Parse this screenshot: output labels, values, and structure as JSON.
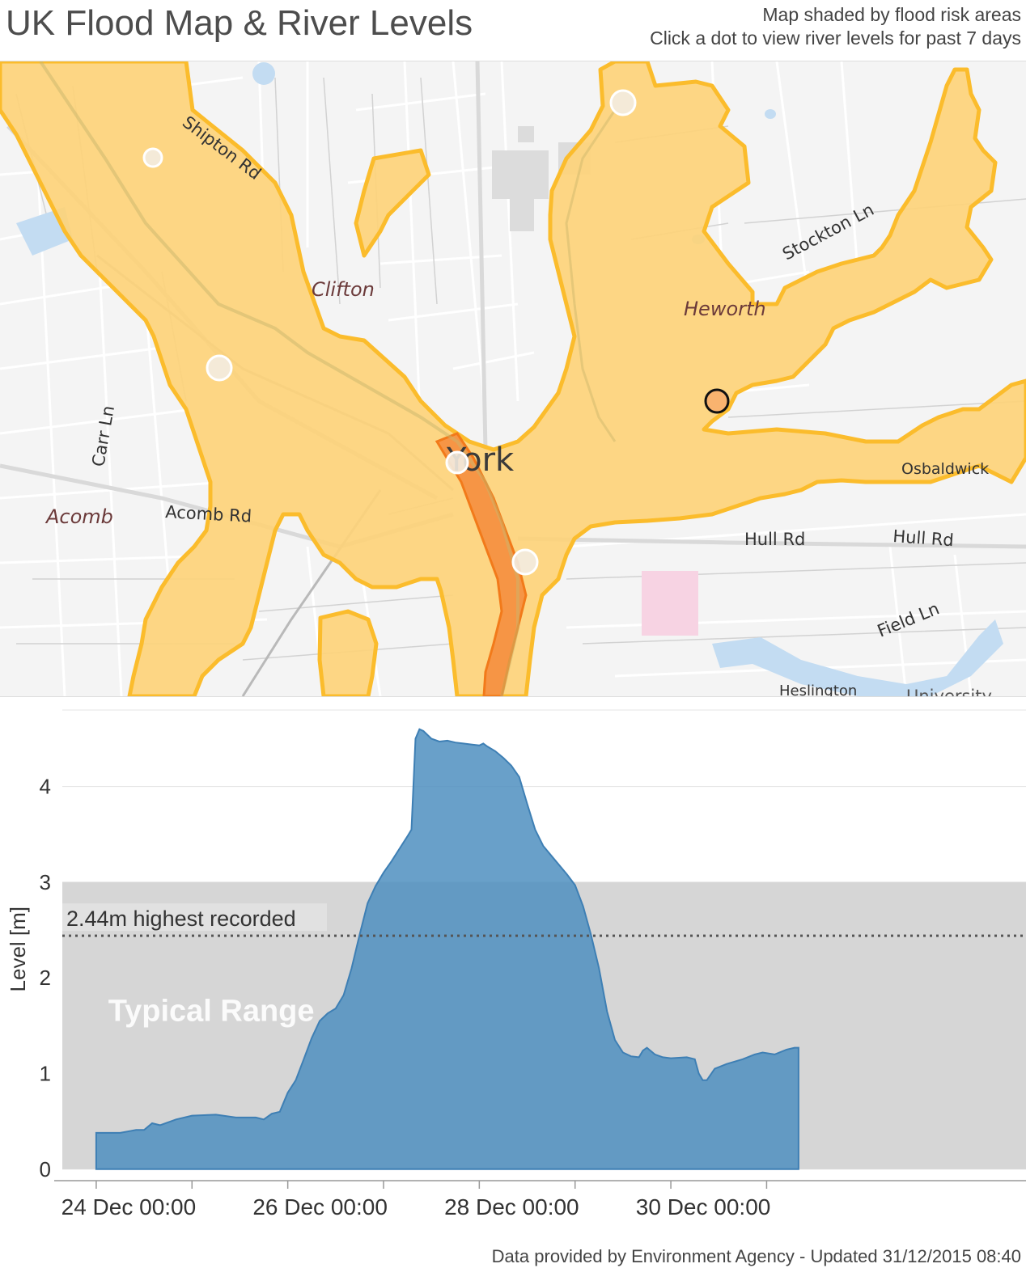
{
  "header": {
    "title": "UK Flood Map & River Levels",
    "subtitle_line1": "Map shaded by flood risk areas",
    "subtitle_line2": "Click a dot to view river levels for past 7 days"
  },
  "map": {
    "labels": {
      "shipton_rd": "Shipton Rd",
      "clifton": "Clifton",
      "stockton_ln": "Stockton Ln",
      "heworth": "Heworth",
      "carr_ln": "Carr Ln",
      "york": "York",
      "osbaldwick": "Osbaldwick",
      "acomb": "Acomb",
      "acomb_rd": "Acomb Rd",
      "hull_rd_1": "Hull Rd",
      "hull_rd_2": "Hull Rd",
      "field_ln": "Field Ln",
      "heslington": "Heslington",
      "university": "University"
    },
    "colors": {
      "flood_fill": "#fdd27a",
      "flood_edge": "#fbbc2c",
      "high_risk_fill": "#f5893a",
      "selected_dot": "#f9b36f",
      "station_dot": "#f3ece1",
      "water": "#c3dcf2"
    }
  },
  "footer": {
    "credit": "Data provided by Environment Agency - Updated 31/12/2015 08:40"
  },
  "chart_data": {
    "type": "area",
    "title": "",
    "xlabel": "",
    "ylabel": "Level [m]",
    "ylim": [
      -0.12,
      4.8
    ],
    "x_unit": "hours since 24 Dec 00:00",
    "xlim": [
      -8.5,
      233
    ],
    "yticks": [
      0,
      1,
      2,
      3,
      4
    ],
    "xtick_labels": [
      {
        "t": 0,
        "label": "24 Dec 00:00"
      },
      {
        "t": 48,
        "label": "26 Dec 00:00"
      },
      {
        "t": 96,
        "label": "28 Dec 00:00"
      },
      {
        "t": 144,
        "label": "30 Dec 00:00"
      }
    ],
    "minor_ticks": [
      24,
      72,
      120,
      168
    ],
    "typical_range": {
      "low": 0,
      "high": 3.0,
      "label": "Typical Range"
    },
    "highest_recorded": {
      "value": 2.44,
      "label": "2.44m highest recorded"
    },
    "area_color": "#4f8fc0",
    "series": [
      {
        "name": "River level",
        "points": [
          [
            0,
            0.38
          ],
          [
            6,
            0.38
          ],
          [
            10,
            0.41
          ],
          [
            12,
            0.41
          ],
          [
            14,
            0.48
          ],
          [
            16,
            0.46
          ],
          [
            20,
            0.52
          ],
          [
            24,
            0.56
          ],
          [
            30,
            0.57
          ],
          [
            35,
            0.54
          ],
          [
            40,
            0.54
          ],
          [
            42,
            0.52
          ],
          [
            44,
            0.58
          ],
          [
            46,
            0.6
          ],
          [
            48,
            0.8
          ],
          [
            50,
            0.93
          ],
          [
            52,
            1.15
          ],
          [
            54,
            1.37
          ],
          [
            56,
            1.55
          ],
          [
            58,
            1.63
          ],
          [
            60,
            1.68
          ],
          [
            62,
            1.82
          ],
          [
            64,
            2.1
          ],
          [
            66,
            2.45
          ],
          [
            68,
            2.78
          ],
          [
            70,
            2.96
          ],
          [
            72,
            3.1
          ],
          [
            74,
            3.22
          ],
          [
            76,
            3.35
          ],
          [
            78,
            3.48
          ],
          [
            79,
            3.55
          ],
          [
            80,
            4.5
          ],
          [
            81,
            4.6
          ],
          [
            82,
            4.58
          ],
          [
            84,
            4.5
          ],
          [
            86,
            4.47
          ],
          [
            88,
            4.48
          ],
          [
            90,
            4.46
          ],
          [
            92,
            4.45
          ],
          [
            94,
            4.44
          ],
          [
            96,
            4.43
          ],
          [
            97,
            4.45
          ],
          [
            98,
            4.42
          ],
          [
            100,
            4.37
          ],
          [
            102,
            4.3
          ],
          [
            104,
            4.22
          ],
          [
            106,
            4.1
          ],
          [
            108,
            3.82
          ],
          [
            110,
            3.55
          ],
          [
            112,
            3.38
          ],
          [
            114,
            3.28
          ],
          [
            116,
            3.18
          ],
          [
            118,
            3.08
          ],
          [
            120,
            2.97
          ],
          [
            122,
            2.75
          ],
          [
            124,
            2.45
          ],
          [
            126,
            2.1
          ],
          [
            128,
            1.65
          ],
          [
            130,
            1.35
          ],
          [
            132,
            1.22
          ],
          [
            134,
            1.18
          ],
          [
            136,
            1.17
          ],
          [
            137,
            1.24
          ],
          [
            138,
            1.27
          ],
          [
            140,
            1.2
          ],
          [
            142,
            1.17
          ],
          [
            144,
            1.16
          ],
          [
            148,
            1.17
          ],
          [
            150,
            1.15
          ],
          [
            151,
            1.0
          ],
          [
            152,
            0.93
          ],
          [
            153,
            0.93
          ],
          [
            155,
            1.05
          ],
          [
            158,
            1.1
          ],
          [
            162,
            1.15
          ],
          [
            165,
            1.2
          ],
          [
            167,
            1.22
          ],
          [
            170,
            1.2
          ],
          [
            173,
            1.25
          ],
          [
            175,
            1.27
          ],
          [
            176,
            1.27
          ]
        ]
      }
    ]
  }
}
